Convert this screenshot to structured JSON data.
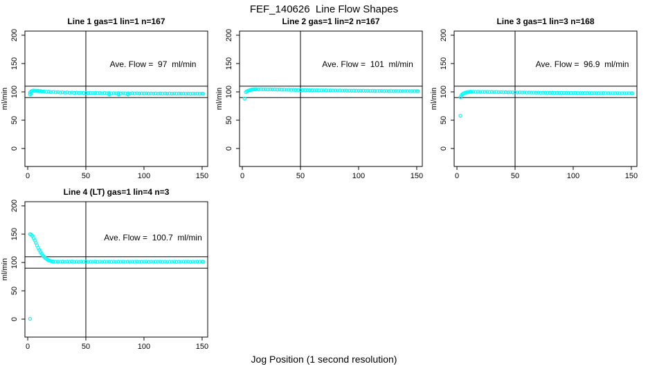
{
  "title": "FEF_140626  Line Flow Shapes",
  "xlabel": "Jog Position (1 second resolution)",
  "colors": {
    "points": "#00FFFF",
    "axis": "#000000",
    "background": "#FFFFFF"
  },
  "chart_data": [
    {
      "type": "scatter",
      "title": "Line 1 gas=1 lin=1 n=167",
      "n": 167,
      "ave_flow_ml_min": 97,
      "annotation": "Ave. Flow =  97  ml/min",
      "ylabel": "ml/min",
      "xlim": [
        -2.4,
        154.8
      ],
      "ylim": [
        -31.7,
        207.3
      ],
      "x_ticks": [
        0,
        50,
        100,
        150
      ],
      "y_ticks": [
        0,
        50,
        100,
        150,
        200
      ],
      "hlines": [
        90,
        110
      ],
      "vlines": [
        50
      ],
      "annotation_pos": {
        "x": 108,
        "y": 150
      },
      "points": [
        [
          2,
          95.4
        ],
        [
          2,
          99.0
        ],
        [
          3,
          100.9
        ],
        [
          3,
          97.2
        ],
        [
          4,
          101.8
        ],
        [
          5,
          102.4
        ],
        [
          6,
          101.6
        ],
        [
          7,
          102.2
        ],
        [
          8,
          101.4
        ],
        [
          9,
          101.9
        ],
        [
          10,
          101.1
        ],
        [
          11,
          101.5
        ],
        [
          12,
          100.8
        ],
        [
          14,
          100.9
        ],
        [
          16,
          100.0
        ],
        [
          18,
          100.4
        ],
        [
          20,
          99.5
        ],
        [
          22,
          99.9
        ],
        [
          24,
          99.2
        ],
        [
          26,
          99.6
        ],
        [
          28,
          98.9
        ],
        [
          30,
          99.3
        ],
        [
          32,
          98.7
        ],
        [
          34,
          99.1
        ],
        [
          36,
          98.5
        ],
        [
          38,
          98.9
        ],
        [
          40,
          98.3
        ],
        [
          42,
          98.7
        ],
        [
          44,
          98.2
        ],
        [
          46,
          98.5
        ],
        [
          48,
          98.0
        ],
        [
          50,
          98.3
        ],
        [
          52,
          97.9
        ],
        [
          54,
          98.2
        ],
        [
          56,
          97.8
        ],
        [
          58,
          98.1
        ],
        [
          60,
          97.7
        ],
        [
          62,
          98.0
        ],
        [
          64,
          97.6
        ],
        [
          66,
          97.9
        ],
        [
          68,
          97.5
        ],
        [
          70,
          95.8
        ],
        [
          70,
          97.8
        ],
        [
          72,
          97.4
        ],
        [
          74,
          97.7
        ],
        [
          76,
          97.4
        ],
        [
          78,
          95.5
        ],
        [
          78,
          97.7
        ],
        [
          80,
          97.3
        ],
        [
          82,
          97.6
        ],
        [
          84,
          97.3
        ],
        [
          86,
          95.7
        ],
        [
          86,
          97.6
        ],
        [
          88,
          97.2
        ],
        [
          90,
          97.5
        ],
        [
          92,
          97.2
        ],
        [
          94,
          97.5
        ],
        [
          96,
          97.1
        ],
        [
          98,
          97.4
        ],
        [
          100,
          97.1
        ],
        [
          102,
          97.4
        ],
        [
          104,
          97.0
        ],
        [
          106,
          97.3
        ],
        [
          108,
          97.0
        ],
        [
          110,
          97.3
        ],
        [
          112,
          96.9
        ],
        [
          114,
          97.2
        ],
        [
          116,
          96.9
        ],
        [
          118,
          97.2
        ],
        [
          120,
          96.9
        ],
        [
          122,
          97.1
        ],
        [
          124,
          96.8
        ],
        [
          126,
          97.1
        ],
        [
          128,
          96.8
        ],
        [
          130,
          97.1
        ],
        [
          132,
          96.8
        ],
        [
          134,
          97.0
        ],
        [
          136,
          96.7
        ],
        [
          138,
          97.0
        ],
        [
          140,
          96.7
        ],
        [
          142,
          97.0
        ],
        [
          144,
          96.7
        ],
        [
          146,
          96.9
        ],
        [
          148,
          96.6
        ],
        [
          150,
          96.9
        ],
        [
          151,
          96.7
        ]
      ]
    },
    {
      "type": "scatter",
      "title": "Line 2 gas=1 lin=2 n=167",
      "n": 167,
      "ave_flow_ml_min": 101,
      "annotation": "Ave. Flow =  101  ml/min",
      "ylabel": "ml/min",
      "xlim": [
        -2.4,
        154.8
      ],
      "ylim": [
        -31.7,
        207.3
      ],
      "x_ticks": [
        0,
        50,
        100,
        150
      ],
      "y_ticks": [
        0,
        50,
        100,
        150,
        200
      ],
      "hlines": [
        90,
        110
      ],
      "vlines": [
        50
      ],
      "annotation_pos": {
        "x": 108,
        "y": 150
      },
      "points": [
        [
          2,
          88.2
        ],
        [
          3,
          99.6
        ],
        [
          4,
          101.0
        ],
        [
          5,
          102.0
        ],
        [
          6,
          102.8
        ],
        [
          7,
          103.4
        ],
        [
          8,
          103.9
        ],
        [
          9,
          104.3
        ],
        [
          10,
          104.6
        ],
        [
          11,
          104.4
        ],
        [
          12,
          104.7
        ],
        [
          14,
          104.5
        ],
        [
          16,
          104.7
        ],
        [
          18,
          104.4
        ],
        [
          20,
          104.6
        ],
        [
          22,
          104.3
        ],
        [
          24,
          104.5
        ],
        [
          26,
          104.2
        ],
        [
          28,
          104.4
        ],
        [
          30,
          104.1
        ],
        [
          32,
          104.2
        ],
        [
          34,
          103.9
        ],
        [
          36,
          104.0
        ],
        [
          38,
          103.7
        ],
        [
          40,
          103.8
        ],
        [
          42,
          103.5
        ],
        [
          44,
          103.6
        ],
        [
          46,
          103.3
        ],
        [
          48,
          103.4
        ],
        [
          50,
          103.2
        ],
        [
          52,
          103.3
        ],
        [
          54,
          103.0
        ],
        [
          56,
          103.1
        ],
        [
          58,
          102.9
        ],
        [
          60,
          103.0
        ],
        [
          62,
          102.8
        ],
        [
          64,
          102.9
        ],
        [
          66,
          102.7
        ],
        [
          68,
          102.8
        ],
        [
          70,
          102.6
        ],
        [
          72,
          102.7
        ],
        [
          74,
          102.5
        ],
        [
          76,
          102.6
        ],
        [
          78,
          102.4
        ],
        [
          80,
          102.5
        ],
        [
          82,
          102.3
        ],
        [
          84,
          102.4
        ],
        [
          86,
          102.2
        ],
        [
          88,
          102.3
        ],
        [
          90,
          102.1
        ],
        [
          92,
          102.2
        ],
        [
          94,
          102.0
        ],
        [
          96,
          102.1
        ],
        [
          98,
          101.9
        ],
        [
          100,
          102.0
        ],
        [
          102,
          101.9
        ],
        [
          104,
          101.9
        ],
        [
          106,
          101.8
        ],
        [
          108,
          101.9
        ],
        [
          110,
          101.7
        ],
        [
          112,
          101.8
        ],
        [
          114,
          101.6
        ],
        [
          116,
          101.7
        ],
        [
          118,
          101.6
        ],
        [
          120,
          101.7
        ],
        [
          122,
          101.5
        ],
        [
          124,
          101.6
        ],
        [
          126,
          101.5
        ],
        [
          128,
          101.6
        ],
        [
          130,
          101.4
        ],
        [
          132,
          101.5
        ],
        [
          134,
          101.4
        ],
        [
          136,
          101.5
        ],
        [
          138,
          101.3
        ],
        [
          140,
          101.4
        ],
        [
          142,
          101.3
        ],
        [
          144,
          101.4
        ],
        [
          146,
          101.3
        ],
        [
          148,
          101.3
        ],
        [
          150,
          101.4
        ],
        [
          151,
          101.3
        ]
      ]
    },
    {
      "type": "scatter",
      "title": "Line 3 gas=1 lin=3 n=168",
      "n": 168,
      "ave_flow_ml_min": 96.9,
      "annotation": "Ave. Flow =  96.9  ml/min",
      "ylabel": "ml/min",
      "xlim": [
        -2.4,
        154.8
      ],
      "ylim": [
        -31.7,
        207.3
      ],
      "x_ticks": [
        0,
        50,
        100,
        150
      ],
      "y_ticks": [
        0,
        50,
        100,
        150,
        200
      ],
      "hlines": [
        90,
        110
      ],
      "vlines": [
        50
      ],
      "annotation_pos": {
        "x": 108,
        "y": 150
      },
      "points": [
        [
          3,
          57.8
        ],
        [
          3,
          90.8
        ],
        [
          4,
          94.6
        ],
        [
          5,
          96.3
        ],
        [
          6,
          97.6
        ],
        [
          7,
          98.4
        ],
        [
          8,
          99.0
        ],
        [
          9,
          99.5
        ],
        [
          10,
          99.8
        ],
        [
          11,
          100.0
        ],
        [
          12,
          100.1
        ],
        [
          14,
          100.2
        ],
        [
          16,
          99.9
        ],
        [
          18,
          100.1
        ],
        [
          20,
          99.8
        ],
        [
          22,
          100.0
        ],
        [
          24,
          99.7
        ],
        [
          26,
          99.9
        ],
        [
          28,
          99.6
        ],
        [
          30,
          99.8
        ],
        [
          32,
          99.5
        ],
        [
          34,
          99.7
        ],
        [
          36,
          99.4
        ],
        [
          38,
          99.6
        ],
        [
          40,
          99.3
        ],
        [
          42,
          99.5
        ],
        [
          44,
          99.2
        ],
        [
          46,
          99.4
        ],
        [
          48,
          99.1
        ],
        [
          50,
          99.2
        ],
        [
          52,
          99.0
        ],
        [
          54,
          99.1
        ],
        [
          56,
          98.9
        ],
        [
          58,
          99.0
        ],
        [
          60,
          98.8
        ],
        [
          62,
          98.9
        ],
        [
          64,
          98.7
        ],
        [
          66,
          98.8
        ],
        [
          68,
          98.6
        ],
        [
          70,
          98.7
        ],
        [
          72,
          98.5
        ],
        [
          74,
          98.6
        ],
        [
          76,
          98.4
        ],
        [
          78,
          98.5
        ],
        [
          80,
          98.3
        ],
        [
          82,
          98.4
        ],
        [
          84,
          98.2
        ],
        [
          86,
          98.3
        ],
        [
          88,
          98.2
        ],
        [
          90,
          98.3
        ],
        [
          92,
          98.1
        ],
        [
          94,
          98.2
        ],
        [
          96,
          98.0
        ],
        [
          98,
          98.1
        ],
        [
          100,
          98.0
        ],
        [
          102,
          98.1
        ],
        [
          104,
          97.9
        ],
        [
          106,
          98.0
        ],
        [
          108,
          97.9
        ],
        [
          110,
          98.0
        ],
        [
          112,
          97.8
        ],
        [
          114,
          97.9
        ],
        [
          116,
          97.8
        ],
        [
          118,
          97.9
        ],
        [
          120,
          97.7
        ],
        [
          122,
          97.8
        ],
        [
          124,
          97.7
        ],
        [
          126,
          97.8
        ],
        [
          128,
          97.6
        ],
        [
          130,
          97.7
        ],
        [
          132,
          97.6
        ],
        [
          134,
          97.7
        ],
        [
          136,
          97.6
        ],
        [
          138,
          97.7
        ],
        [
          140,
          97.5
        ],
        [
          142,
          97.6
        ],
        [
          144,
          97.5
        ],
        [
          146,
          97.6
        ],
        [
          148,
          97.5
        ],
        [
          150,
          97.6
        ],
        [
          151,
          97.5
        ]
      ]
    },
    {
      "type": "scatter",
      "title": "Line 4 (LT) gas=1 lin=4 n=3",
      "n": 3,
      "ave_flow_ml_min": 100.7,
      "annotation": "Ave. Flow =  100.7  ml/min",
      "ylabel": "ml/min",
      "xlim": [
        -2.4,
        154.8
      ],
      "ylim": [
        -31.7,
        207.3
      ],
      "x_ticks": [
        0,
        50,
        100,
        150
      ],
      "y_ticks": [
        0,
        50,
        100,
        150,
        200
      ],
      "hlines": [
        90,
        110
      ],
      "vlines": [
        50
      ],
      "annotation_pos": {
        "x": 108,
        "y": 150
      },
      "points": [
        [
          2,
          0.5
        ],
        [
          2,
          150.0
        ],
        [
          3,
          149.2
        ],
        [
          4,
          146.8
        ],
        [
          5,
          143.2
        ],
        [
          6,
          139.2
        ],
        [
          7,
          134.8
        ],
        [
          8,
          130.2
        ],
        [
          9,
          126.0
        ],
        [
          10,
          122.0
        ],
        [
          11,
          118.4
        ],
        [
          12,
          115.2
        ],
        [
          13,
          112.4
        ],
        [
          14,
          110.0
        ],
        [
          15,
          108.0
        ],
        [
          16,
          106.3
        ],
        [
          17,
          104.9
        ],
        [
          18,
          103.8
        ],
        [
          19,
          103.0
        ],
        [
          20,
          102.4
        ],
        [
          21,
          101.9
        ],
        [
          22,
          101.6
        ],
        [
          24,
          101.3
        ],
        [
          26,
          101.5
        ],
        [
          28,
          101.2
        ],
        [
          30,
          101.6
        ],
        [
          32,
          101.1
        ],
        [
          34,
          101.5
        ],
        [
          36,
          101.2
        ],
        [
          38,
          101.6
        ],
        [
          40,
          101.1
        ],
        [
          42,
          101.4
        ],
        [
          44,
          101.0
        ],
        [
          46,
          101.5
        ],
        [
          48,
          101.2
        ],
        [
          50,
          101.6
        ],
        [
          52,
          101.1
        ],
        [
          54,
          101.4
        ],
        [
          56,
          101.2
        ],
        [
          58,
          101.5
        ],
        [
          60,
          101.0
        ],
        [
          62,
          101.4
        ],
        [
          64,
          101.1
        ],
        [
          66,
          101.5
        ],
        [
          68,
          101.2
        ],
        [
          70,
          101.4
        ],
        [
          72,
          101.0
        ],
        [
          74,
          101.3
        ],
        [
          76,
          101.1
        ],
        [
          78,
          101.5
        ],
        [
          80,
          101.2
        ],
        [
          82,
          101.4
        ],
        [
          84,
          101.0
        ],
        [
          86,
          101.3
        ],
        [
          88,
          101.1
        ],
        [
          90,
          101.4
        ],
        [
          92,
          101.2
        ],
        [
          94,
          101.5
        ],
        [
          96,
          101.0
        ],
        [
          98,
          101.3
        ],
        [
          100,
          101.2
        ],
        [
          102,
          101.4
        ],
        [
          104,
          101.0
        ],
        [
          106,
          101.3
        ],
        [
          108,
          101.1
        ],
        [
          110,
          101.4
        ],
        [
          112,
          101.2
        ],
        [
          114,
          101.3
        ],
        [
          116,
          101.0
        ],
        [
          118,
          101.4
        ],
        [
          120,
          101.1
        ],
        [
          122,
          101.3
        ],
        [
          124,
          101.2
        ],
        [
          126,
          101.4
        ],
        [
          128,
          101.0
        ],
        [
          130,
          101.3
        ],
        [
          132,
          101.1
        ],
        [
          134,
          101.4
        ],
        [
          136,
          101.2
        ],
        [
          138,
          101.3
        ],
        [
          140,
          101.0
        ],
        [
          142,
          101.4
        ],
        [
          144,
          101.1
        ],
        [
          146,
          101.3
        ],
        [
          148,
          101.2
        ],
        [
          150,
          101.3
        ],
        [
          151,
          101.2
        ]
      ]
    }
  ]
}
